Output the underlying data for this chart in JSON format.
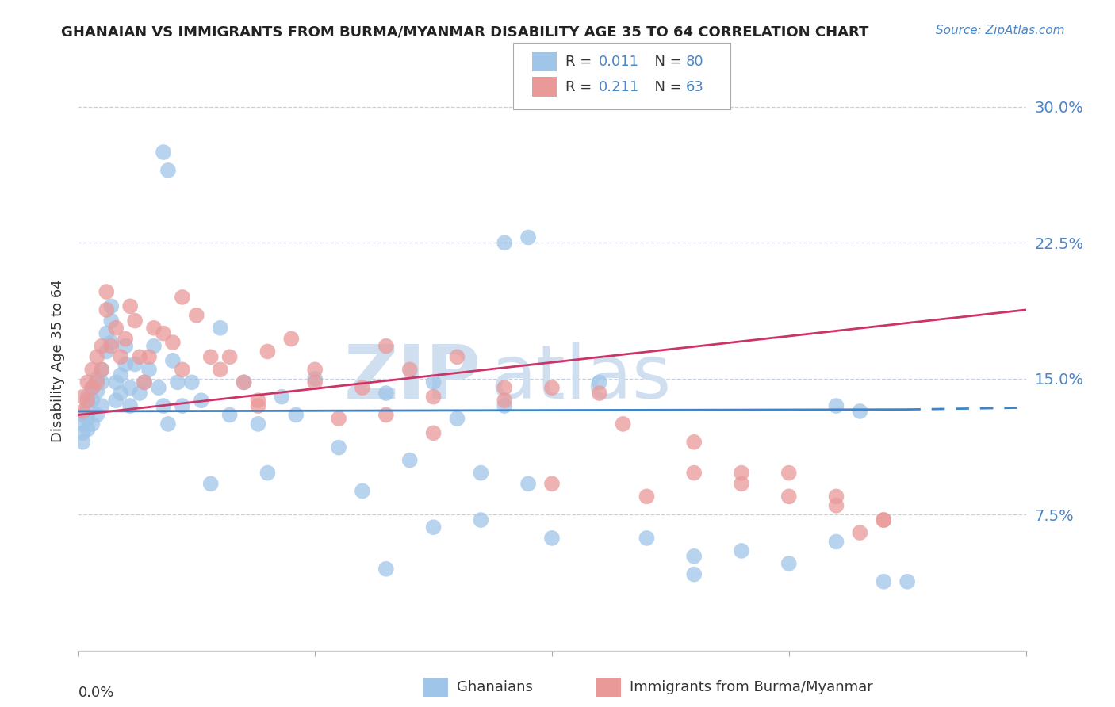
{
  "title": "GHANAIAN VS IMMIGRANTS FROM BURMA/MYANMAR DISABILITY AGE 35 TO 64 CORRELATION CHART",
  "source": "Source: ZipAtlas.com",
  "ylabel": "Disability Age 35 to 64",
  "ytick_labels": [
    "7.5%",
    "15.0%",
    "22.5%",
    "30.0%"
  ],
  "ytick_values": [
    0.075,
    0.15,
    0.225,
    0.3
  ],
  "xlim": [
    0.0,
    0.2
  ],
  "ylim": [
    0.0,
    0.32
  ],
  "blue_color": "#9fc5e8",
  "pink_color": "#ea9999",
  "blue_line_color": "#3d85c8",
  "pink_line_color": "#cc3366",
  "watermark_color": "#d0dff0",
  "background_color": "#ffffff",
  "grid_color": "#c8d0dc",
  "axis_label_color": "#4a86c8",
  "title_color": "#222222",
  "source_color": "#4a86c8",
  "blue_x": [
    0.001,
    0.001,
    0.001,
    0.001,
    0.002,
    0.002,
    0.002,
    0.002,
    0.003,
    0.003,
    0.003,
    0.004,
    0.004,
    0.004,
    0.005,
    0.005,
    0.005,
    0.006,
    0.006,
    0.007,
    0.007,
    0.007,
    0.008,
    0.008,
    0.009,
    0.009,
    0.01,
    0.01,
    0.011,
    0.011,
    0.012,
    0.013,
    0.014,
    0.015,
    0.016,
    0.017,
    0.018,
    0.019,
    0.02,
    0.021,
    0.022,
    0.024,
    0.026,
    0.028,
    0.03,
    0.032,
    0.035,
    0.038,
    0.04,
    0.043,
    0.046,
    0.05,
    0.055,
    0.06,
    0.065,
    0.07,
    0.075,
    0.08,
    0.085,
    0.09,
    0.095,
    0.1,
    0.11,
    0.12,
    0.13,
    0.14,
    0.15,
    0.16,
    0.17,
    0.175,
    0.018,
    0.019,
    0.09,
    0.095,
    0.16,
    0.165,
    0.085,
    0.075,
    0.065,
    0.13
  ],
  "blue_y": [
    0.13,
    0.125,
    0.12,
    0.115,
    0.14,
    0.135,
    0.128,
    0.122,
    0.145,
    0.138,
    0.125,
    0.15,
    0.143,
    0.13,
    0.155,
    0.148,
    0.135,
    0.175,
    0.165,
    0.19,
    0.182,
    0.17,
    0.148,
    0.138,
    0.152,
    0.142,
    0.168,
    0.158,
    0.145,
    0.135,
    0.158,
    0.142,
    0.148,
    0.155,
    0.168,
    0.145,
    0.135,
    0.125,
    0.16,
    0.148,
    0.135,
    0.148,
    0.138,
    0.092,
    0.178,
    0.13,
    0.148,
    0.125,
    0.098,
    0.14,
    0.13,
    0.15,
    0.112,
    0.088,
    0.142,
    0.105,
    0.148,
    0.128,
    0.098,
    0.135,
    0.092,
    0.062,
    0.148,
    0.062,
    0.052,
    0.055,
    0.048,
    0.06,
    0.038,
    0.038,
    0.275,
    0.265,
    0.225,
    0.228,
    0.135,
    0.132,
    0.072,
    0.068,
    0.045,
    0.042
  ],
  "pink_x": [
    0.001,
    0.001,
    0.002,
    0.002,
    0.003,
    0.003,
    0.004,
    0.004,
    0.005,
    0.005,
    0.006,
    0.006,
    0.007,
    0.008,
    0.009,
    0.01,
    0.011,
    0.012,
    0.013,
    0.015,
    0.016,
    0.018,
    0.02,
    0.022,
    0.025,
    0.028,
    0.03,
    0.032,
    0.035,
    0.038,
    0.04,
    0.045,
    0.05,
    0.055,
    0.06,
    0.065,
    0.07,
    0.075,
    0.08,
    0.09,
    0.1,
    0.11,
    0.12,
    0.13,
    0.14,
    0.15,
    0.16,
    0.17,
    0.014,
    0.022,
    0.038,
    0.05,
    0.065,
    0.075,
    0.09,
    0.1,
    0.115,
    0.13,
    0.14,
    0.15,
    0.16,
    0.165,
    0.17
  ],
  "pink_y": [
    0.14,
    0.132,
    0.148,
    0.138,
    0.155,
    0.145,
    0.162,
    0.148,
    0.168,
    0.155,
    0.198,
    0.188,
    0.168,
    0.178,
    0.162,
    0.172,
    0.19,
    0.182,
    0.162,
    0.162,
    0.178,
    0.175,
    0.17,
    0.195,
    0.185,
    0.162,
    0.155,
    0.162,
    0.148,
    0.135,
    0.165,
    0.172,
    0.148,
    0.128,
    0.145,
    0.168,
    0.155,
    0.14,
    0.162,
    0.138,
    0.092,
    0.142,
    0.085,
    0.098,
    0.098,
    0.098,
    0.08,
    0.072,
    0.148,
    0.155,
    0.138,
    0.155,
    0.13,
    0.12,
    0.145,
    0.145,
    0.125,
    0.115,
    0.092,
    0.085,
    0.085,
    0.065,
    0.072
  ],
  "blue_trend_x0": 0.0,
  "blue_trend_x1": 0.175,
  "blue_trend_x1_dash": 0.2,
  "blue_trend_y0": 0.132,
  "blue_trend_y1": 0.133,
  "blue_trend_y1_dash": 0.134,
  "pink_trend_x0": 0.0,
  "pink_trend_x1": 0.2,
  "pink_trend_y0": 0.13,
  "pink_trend_y1": 0.188
}
